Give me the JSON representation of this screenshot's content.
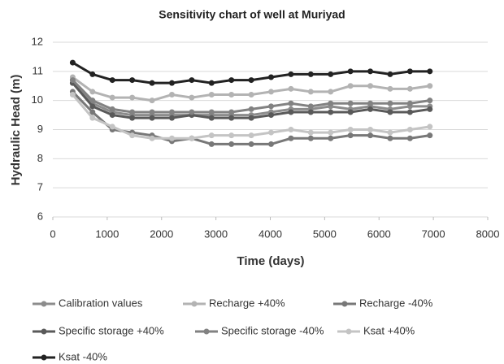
{
  "chart_data": {
    "type": "line",
    "title": "Sensitivity chart of well at Muriyad",
    "x_label": "Time (days)",
    "y_label": "Hydraulic Head (m)",
    "x": [
      365,
      730,
      1095,
      1460,
      1825,
      2190,
      2555,
      2920,
      3285,
      3650,
      4015,
      4380,
      4745,
      5110,
      5475,
      5840,
      6205,
      6570,
      6935
    ],
    "series": [
      {
        "name": "Calibration values",
        "color": "#8c8c8c",
        "values": [
          10.6,
          9.9,
          9.6,
          9.5,
          9.5,
          9.5,
          9.5,
          9.5,
          9.5,
          9.5,
          9.6,
          9.7,
          9.7,
          9.8,
          9.7,
          9.8,
          9.7,
          9.8,
          9.8
        ]
      },
      {
        "name": "Recharge +40%",
        "color": "#b3b3b3",
        "values": [
          10.8,
          10.3,
          10.1,
          10.1,
          10.0,
          10.2,
          10.1,
          10.2,
          10.2,
          10.2,
          10.3,
          10.4,
          10.3,
          10.3,
          10.5,
          10.5,
          10.4,
          10.4,
          10.5
        ]
      },
      {
        "name": "Recharge -40%",
        "color": "#787878",
        "values": [
          10.3,
          9.6,
          9.0,
          8.9,
          8.8,
          8.6,
          8.7,
          8.5,
          8.5,
          8.5,
          8.5,
          8.7,
          8.7,
          8.7,
          8.8,
          8.8,
          8.7,
          8.7,
          8.8
        ]
      },
      {
        "name": "Specific storage +40%",
        "color": "#5a5a5a",
        "values": [
          10.6,
          9.8,
          9.5,
          9.4,
          9.4,
          9.4,
          9.5,
          9.4,
          9.4,
          9.4,
          9.5,
          9.6,
          9.6,
          9.6,
          9.6,
          9.7,
          9.6,
          9.6,
          9.7
        ]
      },
      {
        "name": "Specific storage -40%",
        "color": "#828282",
        "values": [
          10.7,
          10.0,
          9.7,
          9.6,
          9.6,
          9.6,
          9.6,
          9.6,
          9.6,
          9.7,
          9.8,
          9.9,
          9.8,
          9.9,
          9.9,
          9.9,
          9.9,
          9.9,
          10.0
        ]
      },
      {
        "name": "Ksat  +40%",
        "color": "#c4c4c4",
        "values": [
          10.2,
          9.4,
          9.1,
          8.8,
          8.7,
          8.7,
          8.7,
          8.8,
          8.8,
          8.8,
          8.9,
          9.0,
          8.9,
          8.9,
          9.0,
          9.0,
          8.9,
          9.0,
          9.1
        ]
      },
      {
        "name": "Ksat  -40%",
        "color": "#222222",
        "values": [
          11.3,
          10.9,
          10.7,
          10.7,
          10.6,
          10.6,
          10.7,
          10.6,
          10.7,
          10.7,
          10.8,
          10.9,
          10.9,
          10.9,
          11.0,
          11.0,
          10.9,
          11.0,
          11.0
        ]
      }
    ],
    "xlim": [
      0,
      8000
    ],
    "xticks": [
      0,
      1000,
      2000,
      3000,
      4000,
      5000,
      6000,
      7000,
      8000
    ],
    "ylim": [
      6,
      12
    ],
    "yticks": [
      6,
      7,
      8,
      9,
      10,
      11,
      12
    ],
    "grid": true
  }
}
